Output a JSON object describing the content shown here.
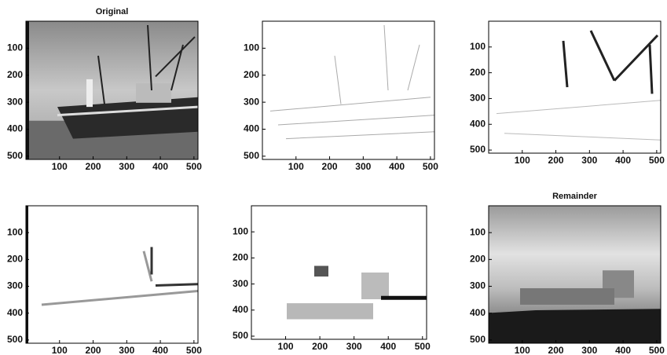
{
  "panels": [
    {
      "title": "Original",
      "xlim": [
        0,
        512
      ],
      "ylim": [
        0,
        512
      ],
      "xticks": [
        100,
        200,
        300,
        400,
        500
      ],
      "yticks": [
        100,
        200,
        300,
        400,
        500
      ]
    },
    {
      "xlim": [
        0,
        512
      ],
      "ylim": [
        0,
        512
      ],
      "xticks": [
        100,
        200,
        300,
        400,
        500
      ],
      "yticks": [
        100,
        200,
        300,
        400,
        500
      ]
    },
    {
      "xlim": [
        0,
        512
      ],
      "ylim": [
        0,
        512
      ],
      "xticks": [
        100,
        200,
        300,
        400,
        500
      ],
      "yticks": [
        100,
        200,
        300,
        400,
        500
      ]
    },
    {
      "xlim": [
        0,
        512
      ],
      "ylim": [
        0,
        512
      ],
      "xticks": [
        100,
        200,
        300,
        400,
        500
      ],
      "yticks": [
        100,
        200,
        300,
        400,
        500
      ]
    },
    {
      "xlim": [
        0,
        512
      ],
      "ylim": [
        0,
        512
      ],
      "xticks": [
        100,
        200,
        300,
        400,
        500
      ],
      "yticks": [
        100,
        200,
        300,
        400,
        500
      ]
    },
    {
      "title": "Remainder",
      "xlim": [
        0,
        512
      ],
      "ylim": [
        0,
        512
      ],
      "xticks": [
        100,
        200,
        300,
        400,
        500
      ],
      "yticks": [
        100,
        200,
        300,
        400,
        500
      ]
    }
  ]
}
